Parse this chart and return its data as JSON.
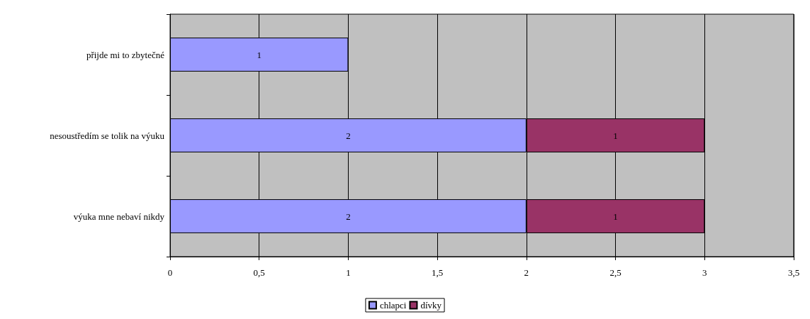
{
  "chart_data": {
    "type": "bar",
    "orientation": "horizontal",
    "stacked": true,
    "categories": [
      "přijde mi to zbytečné",
      "nesoustředím se tolik na výuku",
      "výuka mne nebaví nikdy"
    ],
    "series": [
      {
        "name": "chlapci",
        "color": "#9999ff",
        "values": [
          1,
          2,
          2
        ]
      },
      {
        "name": "dívky",
        "color": "#993366",
        "values": [
          null,
          1,
          1
        ]
      }
    ],
    "xlim": [
      0,
      3.5
    ],
    "xticks": [
      0,
      {
        "value": 0.5,
        "label": "0,5"
      },
      1,
      {
        "value": 1.5,
        "label": "1,5"
      },
      2,
      {
        "value": 2.5,
        "label": "2,5"
      },
      3,
      {
        "value": 3.5,
        "label": "3,5"
      }
    ],
    "grid": "x",
    "legend": "bottom",
    "data_labels": true
  }
}
